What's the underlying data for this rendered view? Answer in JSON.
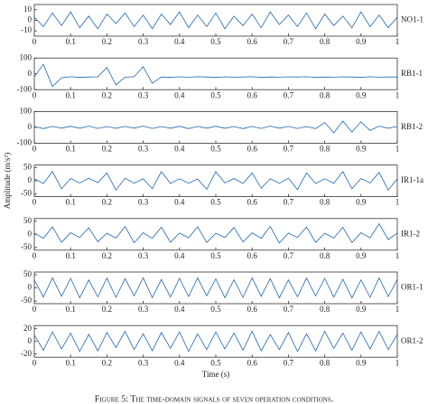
{
  "ylabel": "Amplitude (m/s²)",
  "xlabel": "Time (s)",
  "caption": "Figure 5: The time-domain signals of seven operation conditions.",
  "chart_data": [
    {
      "type": "line",
      "x": [
        0,
        0.025,
        0.05,
        0.075,
        0.1,
        0.125,
        0.15,
        0.175,
        0.2,
        0.225,
        0.25,
        0.275,
        0.3,
        0.325,
        0.35,
        0.375,
        0.4,
        0.425,
        0.45,
        0.475,
        0.5,
        0.525,
        0.55,
        0.575,
        0.6,
        0.625,
        0.65,
        0.675,
        0.7,
        0.725,
        0.75,
        0.775,
        0.8,
        0.825,
        0.85,
        0.875,
        0.9,
        0.925,
        0.95,
        0.975,
        1
      ],
      "series": [
        {
          "name": "NO1-1",
          "color": "#2166b0",
          "values": [
            3,
            -6,
            7,
            -5,
            8,
            -7,
            4,
            -8,
            6,
            -3,
            7,
            -6,
            5,
            -8,
            6,
            -4,
            8,
            -7,
            5,
            -6,
            7,
            -8,
            4,
            -5,
            6,
            -7,
            8,
            -4,
            5,
            -6,
            7,
            -8,
            6,
            -5,
            4,
            -7,
            8,
            -6,
            5,
            -7,
            3
          ]
        }
      ],
      "xlim": [
        0,
        1
      ],
      "xticks": [
        0,
        0.1,
        0.2,
        0.3,
        0.4,
        0.5,
        0.6,
        0.7,
        0.8,
        0.9,
        1
      ],
      "ylim": [
        -15,
        15
      ],
      "yticks": [
        -10,
        0,
        10
      ]
    },
    {
      "type": "line",
      "x": [
        0,
        0.025,
        0.05,
        0.075,
        0.1,
        0.125,
        0.15,
        0.175,
        0.2,
        0.225,
        0.25,
        0.275,
        0.3,
        0.325,
        0.35,
        0.375,
        0.4,
        0.425,
        0.45,
        0.475,
        0.5,
        0.525,
        0.55,
        0.575,
        0.6,
        0.625,
        0.65,
        0.675,
        0.7,
        0.725,
        0.75,
        0.775,
        0.8,
        0.825,
        0.85,
        0.875,
        0.9,
        0.925,
        0.95,
        0.975,
        1
      ],
      "series": [
        {
          "name": "RB1-1",
          "color": "#2166b0",
          "values": [
            -20,
            60,
            -80,
            -25,
            -18,
            -22,
            -20,
            -19,
            40,
            -70,
            -21,
            -18,
            45,
            -60,
            -20,
            -22,
            -19,
            -21,
            -18,
            -20,
            -22,
            -19,
            -21,
            -20,
            -18,
            -22,
            -20,
            -21,
            -19,
            -20,
            -18,
            -22,
            -20,
            -21,
            -19,
            -20,
            -22,
            -18,
            -21,
            -20,
            -20
          ]
        }
      ],
      "xlim": [
        0,
        1
      ],
      "xticks": [
        0,
        0.1,
        0.2,
        0.3,
        0.4,
        0.5,
        0.6,
        0.7,
        0.8,
        0.9,
        1
      ],
      "ylim": [
        -100,
        100
      ],
      "yticks": [
        -100,
        0,
        100
      ]
    },
    {
      "type": "line",
      "x": [
        0,
        0.025,
        0.05,
        0.075,
        0.1,
        0.125,
        0.15,
        0.175,
        0.2,
        0.225,
        0.25,
        0.275,
        0.3,
        0.325,
        0.35,
        0.375,
        0.4,
        0.425,
        0.45,
        0.475,
        0.5,
        0.525,
        0.55,
        0.575,
        0.6,
        0.625,
        0.65,
        0.675,
        0.7,
        0.725,
        0.75,
        0.775,
        0.8,
        0.825,
        0.85,
        0.875,
        0.9,
        0.925,
        0.95,
        0.975,
        1
      ],
      "series": [
        {
          "name": "RB1-2",
          "color": "#2166b0",
          "values": [
            5,
            -8,
            6,
            -5,
            7,
            -6,
            8,
            -7,
            5,
            -6,
            6,
            -5,
            8,
            -7,
            5,
            -6,
            7,
            -8,
            6,
            -5,
            7,
            -6,
            5,
            -8,
            6,
            -7,
            8,
            -5,
            6,
            -7,
            5,
            -8,
            30,
            -35,
            40,
            -30,
            35,
            -20,
            8,
            -6,
            5
          ]
        }
      ],
      "xlim": [
        0,
        1
      ],
      "xticks": [
        0,
        0.1,
        0.2,
        0.3,
        0.4,
        0.5,
        0.6,
        0.7,
        0.8,
        0.9,
        1
      ],
      "ylim": [
        -100,
        100
      ],
      "yticks": [
        -100,
        0,
        100
      ]
    },
    {
      "type": "line",
      "x": [
        0,
        0.025,
        0.05,
        0.075,
        0.1,
        0.125,
        0.15,
        0.175,
        0.2,
        0.225,
        0.25,
        0.275,
        0.3,
        0.325,
        0.35,
        0.375,
        0.4,
        0.425,
        0.45,
        0.475,
        0.5,
        0.525,
        0.55,
        0.575,
        0.6,
        0.625,
        0.65,
        0.675,
        0.7,
        0.725,
        0.75,
        0.775,
        0.8,
        0.825,
        0.85,
        0.875,
        0.9,
        0.925,
        0.95,
        0.975,
        1
      ],
      "series": [
        {
          "name": "IR1-1a",
          "color": "#2166b0",
          "values": [
            8,
            -10,
            35,
            -30,
            9,
            -8,
            10,
            -7,
            30,
            -35,
            10,
            -9,
            8,
            -30,
            35,
            -10,
            8,
            -9,
            7,
            -32,
            35,
            -8,
            9,
            -10,
            30,
            -28,
            8,
            -9,
            10,
            -33,
            30,
            -10,
            8,
            -9,
            35,
            -30,
            9,
            -8,
            32,
            -35,
            8
          ]
        }
      ],
      "xlim": [
        0,
        1
      ],
      "xticks": [
        0,
        0.1,
        0.2,
        0.3,
        0.4,
        0.5,
        0.6,
        0.7,
        0.8,
        0.9,
        1
      ],
      "ylim": [
        -60,
        60
      ],
      "yticks": [
        -50,
        0,
        50
      ]
    },
    {
      "type": "line",
      "x": [
        0,
        0.025,
        0.05,
        0.075,
        0.1,
        0.125,
        0.15,
        0.175,
        0.2,
        0.225,
        0.25,
        0.275,
        0.3,
        0.325,
        0.35,
        0.375,
        0.4,
        0.425,
        0.45,
        0.475,
        0.5,
        0.525,
        0.55,
        0.575,
        0.6,
        0.625,
        0.65,
        0.675,
        0.7,
        0.725,
        0.75,
        0.775,
        0.8,
        0.825,
        0.85,
        0.875,
        0.9,
        0.925,
        0.95,
        0.975,
        1
      ],
      "series": [
        {
          "name": "IR1-2",
          "color": "#2166b0",
          "values": [
            5,
            -15,
            28,
            -30,
            6,
            -12,
            25,
            -28,
            4,
            -14,
            30,
            -32,
            6,
            -15,
            27,
            -30,
            5,
            -13,
            29,
            -31,
            4,
            -12,
            26,
            -29,
            6,
            -15,
            30,
            -33,
            5,
            -12,
            28,
            -30,
            4,
            -14,
            27,
            -31,
            6,
            -13,
            40,
            -20,
            5
          ]
        }
      ],
      "xlim": [
        0,
        1
      ],
      "xticks": [
        0,
        0.1,
        0.2,
        0.3,
        0.4,
        0.5,
        0.6,
        0.7,
        0.8,
        0.9,
        1
      ],
      "ylim": [
        -60,
        60
      ],
      "yticks": [
        -50,
        0,
        50
      ]
    },
    {
      "type": "line",
      "x": [
        0,
        0.025,
        0.05,
        0.075,
        0.1,
        0.125,
        0.15,
        0.175,
        0.2,
        0.225,
        0.25,
        0.275,
        0.3,
        0.325,
        0.35,
        0.375,
        0.4,
        0.425,
        0.45,
        0.475,
        0.5,
        0.525,
        0.55,
        0.575,
        0.6,
        0.625,
        0.65,
        0.675,
        0.7,
        0.725,
        0.75,
        0.775,
        0.8,
        0.825,
        0.85,
        0.875,
        0.9,
        0.925,
        0.95,
        0.975,
        1
      ],
      "series": [
        {
          "name": "OR1-1",
          "color": "#2166b0",
          "values": [
            30,
            -35,
            38,
            -32,
            36,
            -38,
            30,
            -34,
            37,
            -36,
            35,
            -30,
            38,
            -37,
            32,
            -35,
            36,
            -33,
            38,
            -30,
            34,
            -37,
            31,
            -36,
            38,
            -32,
            35,
            -38,
            30,
            -34,
            37,
            -31,
            36,
            -35,
            33,
            -38,
            30,
            -36,
            38,
            -33,
            32
          ]
        }
      ],
      "xlim": [
        0,
        1
      ],
      "xticks": [
        0,
        0.1,
        0.2,
        0.3,
        0.4,
        0.5,
        0.6,
        0.7,
        0.8,
        0.9,
        1
      ],
      "ylim": [
        -60,
        60
      ],
      "yticks": [
        -50,
        0,
        50
      ]
    },
    {
      "type": "line",
      "x": [
        0,
        0.025,
        0.05,
        0.075,
        0.1,
        0.125,
        0.15,
        0.175,
        0.2,
        0.225,
        0.25,
        0.275,
        0.3,
        0.325,
        0.35,
        0.375,
        0.4,
        0.425,
        0.45,
        0.475,
        0.5,
        0.525,
        0.55,
        0.575,
        0.6,
        0.625,
        0.65,
        0.675,
        0.7,
        0.725,
        0.75,
        0.775,
        0.8,
        0.825,
        0.85,
        0.875,
        0.9,
        0.925,
        0.95,
        0.975,
        1
      ],
      "series": [
        {
          "name": "OR1-2",
          "color": "#2166b0",
          "values": [
            10,
            -14,
            15,
            -12,
            13,
            -16,
            11,
            -15,
            14,
            -10,
            16,
            -13,
            12,
            -15,
            14,
            -11,
            15,
            -16,
            12,
            -13,
            15,
            -12,
            13,
            -14,
            16,
            -15,
            11,
            -13,
            14,
            -16,
            12,
            -15,
            16,
            -11,
            13,
            -14,
            15,
            -12,
            16,
            -13,
            11
          ]
        }
      ],
      "xlim": [
        0,
        1
      ],
      "xticks": [
        0,
        0.1,
        0.2,
        0.3,
        0.4,
        0.5,
        0.6,
        0.7,
        0.8,
        0.9,
        1
      ],
      "ylim": [
        -25,
        25
      ],
      "yticks": [
        -20,
        0,
        20
      ]
    }
  ]
}
